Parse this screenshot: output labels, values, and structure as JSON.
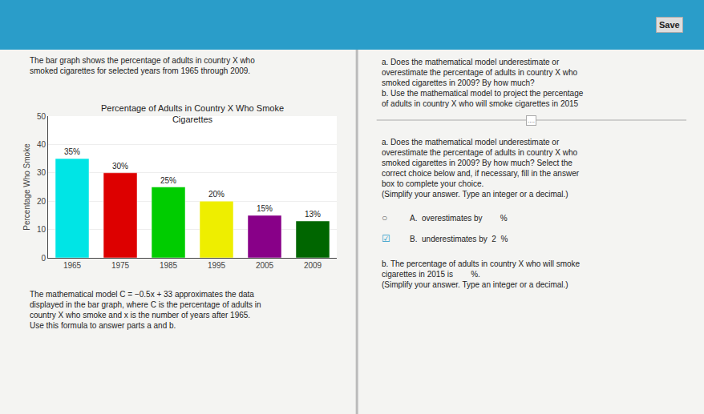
{
  "chart_data": {
    "type": "bar",
    "title": "Percentage of Adults in Country X Who Smoke\nCigarettes",
    "ylabel": "Percentage Who Smoke",
    "categories": [
      "1965",
      "1975",
      "1985",
      "1995",
      "2005",
      "2009"
    ],
    "values": [
      35,
      30,
      25,
      20,
      15,
      13
    ],
    "value_labels": [
      "35%",
      "30%",
      "25%",
      "20%",
      "15%",
      "13%"
    ],
    "data_labels": true,
    "colors": [
      "#00e5e5",
      "#dd0000",
      "#00cc00",
      "#eeee00",
      "#880088",
      "#006600"
    ],
    "ylim": [
      0,
      50
    ],
    "yticks": [
      0,
      10,
      20,
      30,
      40,
      50
    ],
    "grid": true,
    "annotations": [
      "Save",
      "The bar graph shows the percentage of adults in country X who\nsmoked cigarettes for selected years from 1965 through 2009.",
      "The mathematical model C = −0.5x + 33 approximates the data\ndisplayed in the bar graph, where C is the percentage of adults in\ncountry X who smoke and x is the number of years after 1965.\nUse this formula to answer parts a and b.",
      "a. Does the mathematical model underestimate or\noverestimate the percentage of adults in country X who\nsmoked cigarettes in 2009? By how much?\nb. Use the mathematical model to project the percentage\nof adults in country X who will smoke cigarettes in 2015",
      "....",
      "a. Does the mathematical model underestimate or\noverestimate the percentage of adults in country X who\nsmoked cigarettes in 2009? By how much? Select the\ncorrect choice below and, if necessary, fill in the answer\nbox to complete your choice.\n(Simplify your answer. Type an integer or a decimal.)",
      "○",
      "A.  overestimates by        %",
      "☑",
      "B.  underestimates by  2  %",
      "b. The percentage of adults in country X who will smoke\ncigarettes in 2015 is        %.\n(Simplify your answer. Type an integer or a decimal.)"
    ]
  }
}
